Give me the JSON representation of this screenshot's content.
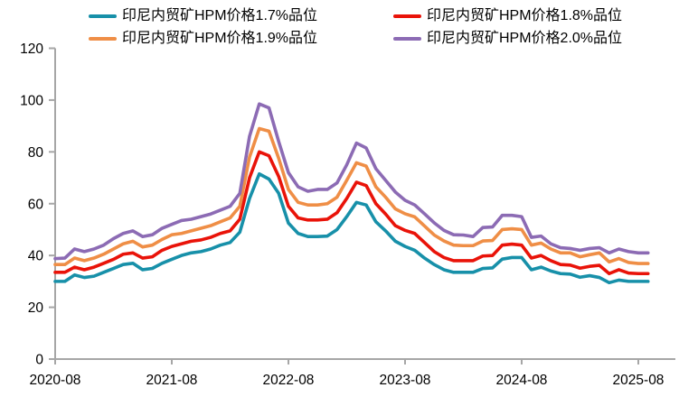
{
  "chart_data": {
    "type": "line",
    "title": "",
    "xlabel": "",
    "ylabel": "",
    "grid": false,
    "legend_position": "top",
    "axis_color": "#a6a6a6",
    "text_color": "#000000",
    "ylim": [
      0,
      120
    ],
    "y_ticks": [
      0,
      20,
      40,
      60,
      80,
      100,
      120
    ],
    "x_tick_labels": [
      "2020-08",
      "2021-08",
      "2022-08",
      "2023-08",
      "2024-08",
      "2025-08"
    ],
    "x": [
      "2020-08",
      "2020-09",
      "2020-10",
      "2020-11",
      "2020-12",
      "2021-01",
      "2021-02",
      "2021-03",
      "2021-04",
      "2021-05",
      "2021-06",
      "2021-07",
      "2021-08",
      "2021-09",
      "2021-10",
      "2021-11",
      "2021-12",
      "2022-01",
      "2022-02",
      "2022-03",
      "2022-04",
      "2022-05",
      "2022-06",
      "2022-07",
      "2022-08",
      "2022-09",
      "2022-10",
      "2022-11",
      "2022-12",
      "2023-01",
      "2023-02",
      "2023-03",
      "2023-04",
      "2023-05",
      "2023-06",
      "2023-07",
      "2023-08",
      "2023-09",
      "2023-10",
      "2023-11",
      "2023-12",
      "2024-01",
      "2024-02",
      "2024-03",
      "2024-04",
      "2024-05",
      "2024-06",
      "2024-07",
      "2024-08",
      "2024-09",
      "2024-10",
      "2024-11",
      "2024-12",
      "2025-01",
      "2025-02",
      "2025-03",
      "2025-04",
      "2025-05",
      "2025-06",
      "2025-07",
      "2025-08",
      "2025-09"
    ],
    "series": [
      {
        "name": "印尼内贸矿HPM价格1.7%品位",
        "color": "#1790a9",
        "values": [
          30,
          30,
          32.5,
          31.5,
          32,
          33.5,
          35,
          36.5,
          37,
          34.5,
          35,
          37,
          38.5,
          40,
          41,
          41.5,
          42.5,
          44,
          45,
          49,
          62,
          71.5,
          69.5,
          64,
          52.5,
          48.5,
          47.3,
          47.3,
          47.5,
          50,
          55,
          60.5,
          59.5,
          53,
          49.5,
          45.5,
          43.5,
          42,
          39,
          36.5,
          34.5,
          33.5,
          33.5,
          33.5,
          35,
          35.2,
          38.6,
          39.2,
          39.2,
          34.5,
          35.5,
          34,
          33,
          32.8,
          31.6,
          32.2,
          31.5,
          29.5,
          30.5,
          30,
          30,
          30
        ]
      },
      {
        "name": "印尼内贸矿HPM价格1.8%品位",
        "color": "#e91309",
        "values": [
          33.5,
          33.5,
          35.5,
          34.5,
          35.5,
          37,
          38.5,
          40.5,
          41,
          39,
          39.5,
          42,
          43.5,
          44.5,
          45.5,
          46,
          47,
          48.5,
          49.5,
          54,
          70,
          80,
          78.5,
          70.5,
          59,
          54.5,
          53.7,
          53.7,
          54,
          56.5,
          62,
          68.3,
          67,
          60,
          56,
          51.5,
          49.7,
          48.5,
          45,
          41.5,
          39.2,
          38,
          38,
          38,
          39.8,
          40,
          44,
          44.4,
          44,
          39,
          40,
          38,
          36.5,
          36.3,
          35.1,
          35.8,
          36.2,
          33,
          34.5,
          33.2,
          33,
          33
        ]
      },
      {
        "name": "印尼内贸矿HPM价格1.9%品位",
        "color": "#ef8e46",
        "values": [
          36.5,
          36.5,
          39,
          38,
          39,
          40.5,
          42.5,
          44.5,
          45.5,
          43.3,
          44,
          46.2,
          48,
          48.5,
          49.5,
          50.5,
          51.5,
          53,
          54.5,
          59,
          78,
          89,
          88,
          77.5,
          65.5,
          60.5,
          59.5,
          59.5,
          60,
          62.5,
          69,
          75.8,
          74.5,
          66.5,
          62.5,
          58,
          56.1,
          54.9,
          51.4,
          47.9,
          45.6,
          44,
          43.8,
          43.8,
          45.6,
          45.8,
          50,
          50.3,
          50,
          44,
          44.8,
          42.5,
          41,
          41,
          39.5,
          40.3,
          41,
          37.5,
          38.8,
          37.3,
          36.9,
          36.9
        ]
      },
      {
        "name": "印尼内贸矿HPM价格2.0%品位",
        "color": "#8c6bb4",
        "values": [
          38.8,
          39,
          42.5,
          41.5,
          42.5,
          44,
          46.5,
          48.5,
          49.5,
          47.3,
          48,
          50.5,
          52,
          53.5,
          54,
          55,
          56,
          57.5,
          59,
          64,
          86,
          98.5,
          97,
          84,
          72,
          66.5,
          64.8,
          65.5,
          65.5,
          68,
          75,
          83.4,
          81.5,
          73.5,
          69,
          64.5,
          61.3,
          59.5,
          56.1,
          52.6,
          49.7,
          48,
          47.9,
          47.3,
          50.8,
          51,
          55.5,
          55.5,
          55,
          47,
          47.5,
          44.5,
          43,
          42.7,
          42,
          42.7,
          43,
          41,
          42.5,
          41.5,
          41,
          41
        ]
      }
    ]
  }
}
